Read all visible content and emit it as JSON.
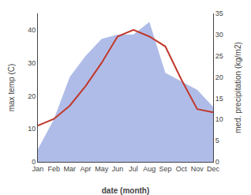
{
  "chart_data": {
    "type": "line",
    "xlabel": "date (month)",
    "ylabel": "max temp (C)",
    "y2label": "med. precipitation (kg/m2)",
    "categories": [
      "Jan",
      "Feb",
      "Mar",
      "Apr",
      "May",
      "Jun",
      "Jul",
      "Aug",
      "Sep",
      "Oct",
      "Nov",
      "Dec"
    ],
    "series": [
      {
        "type": "area",
        "axis": "y2",
        "color": "#b0bce8",
        "values": [
          3,
          10,
          20,
          25,
          29,
          30,
          30,
          33,
          21,
          19,
          17,
          13
        ]
      },
      {
        "type": "line",
        "color": "#c0392b",
        "values": [
          11,
          13,
          17,
          23,
          30,
          38,
          40,
          38,
          35,
          25,
          16,
          15
        ]
      }
    ],
    "ylim": [
      0,
      45
    ],
    "yticks": [
      0,
      10,
      20,
      30,
      40
    ],
    "y2lim": [
      0,
      35
    ],
    "y2ticks": [
      0,
      5,
      10,
      15,
      20,
      25,
      30,
      35
    ],
    "grid": false
  }
}
